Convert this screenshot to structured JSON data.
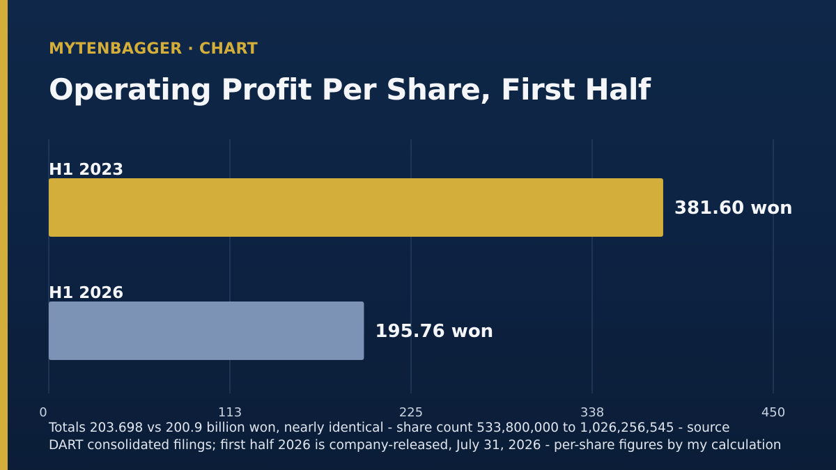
{
  "header": {
    "kicker": "MYTENBAGGER · CHART",
    "title": "Operating Profit Per Share, First Half"
  },
  "colors": {
    "accent": "#d4ae3a",
    "bar_primary": "#d4ae3a",
    "bar_secondary": "#7c93b6",
    "gridline": "#2f4a6e",
    "text": "#f4f6fa"
  },
  "chart_data": {
    "type": "bar",
    "orientation": "horizontal",
    "categories": [
      "H1 2023",
      "H1 2026"
    ],
    "values": [
      381.6,
      195.76
    ],
    "value_labels": [
      "381.60 won",
      "195.76 won"
    ],
    "bar_colors": [
      "#d4ae3a",
      "#7c93b6"
    ],
    "xlim": [
      0,
      450
    ],
    "xticks": [
      "0",
      "113",
      "225",
      "338",
      "450"
    ],
    "xtick_values": [
      0,
      112.5,
      225,
      337.5,
      450
    ],
    "grid": true
  },
  "footnote": {
    "line1": "Totals 203.698 vs 200.9 billion won, nearly identical - share count 533,800,000 to 1,026,256,545 - source",
    "line2": "DART consolidated filings; first half 2026 is company-released, July 31, 2026 - per-share figures by my calculation"
  }
}
